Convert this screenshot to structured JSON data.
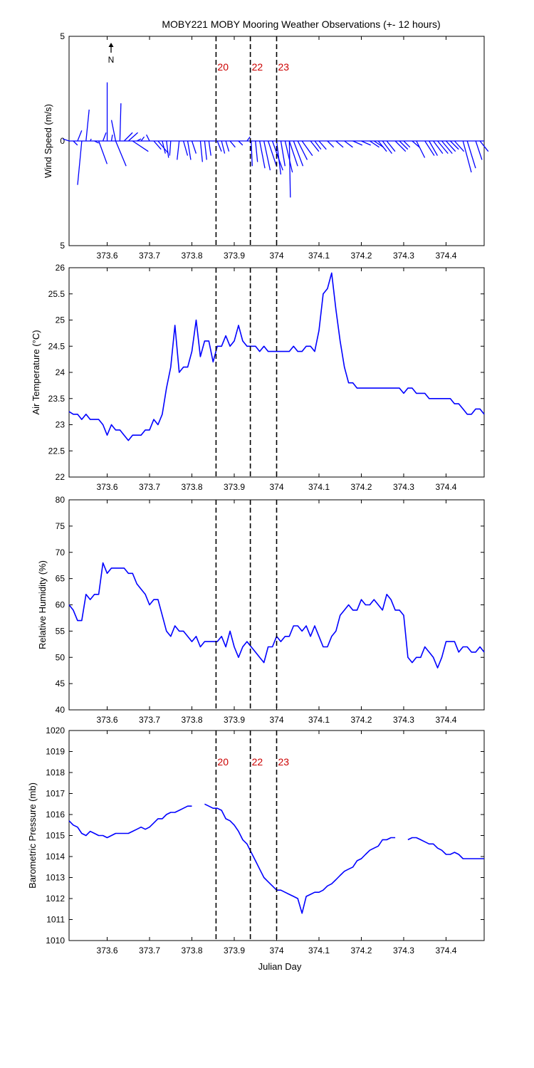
{
  "title": "MOBY221 MOBY Mooring Weather Observations (+- 12 hours)",
  "xlabel": "Julian Day",
  "north_label": "N",
  "line_color": "#0000ff",
  "marker_color": "#cc0000",
  "chart_data": [
    {
      "type": "line",
      "subtype": "wind-vector (stick) plot",
      "ylabel": "Wind Speed (m/s)",
      "ylim": [
        -5,
        5
      ],
      "yticks": [
        5,
        0,
        5
      ],
      "xlim": [
        373.51,
        374.49
      ],
      "xticks": [
        "373.6",
        "373.7",
        "373.8",
        "373.9",
        "374",
        "374.1",
        "374.2",
        "374.3",
        "374.4"
      ],
      "xtick_values": [
        373.6,
        373.7,
        373.8,
        373.9,
        374.0,
        374.1,
        374.2,
        374.3,
        374.4
      ],
      "event_lines": [
        {
          "x": 373.857,
          "label": "20"
        },
        {
          "x": 373.938,
          "label": "22"
        },
        {
          "x": 374.0,
          "label": "23"
        }
      ],
      "vectors": [
        [
          373.51,
          -0.6,
          0.1
        ],
        [
          373.52,
          0.4,
          -0.2
        ],
        [
          373.53,
          0.4,
          0.5
        ],
        [
          373.54,
          -0.4,
          -2.1
        ],
        [
          373.55,
          0.3,
          1.5
        ],
        [
          373.56,
          0.1,
          0.1
        ],
        [
          373.57,
          0.4,
          -0.1
        ],
        [
          373.58,
          0.8,
          -1.1
        ],
        [
          373.59,
          0.3,
          0.4
        ],
        [
          373.6,
          0.0,
          2.8
        ],
        [
          373.61,
          0.1,
          0.3
        ],
        [
          373.62,
          -0.4,
          1.0
        ],
        [
          373.62,
          1.0,
          -1.2
        ],
        [
          373.63,
          0.1,
          1.8
        ],
        [
          373.64,
          0.8,
          0.4
        ],
        [
          373.65,
          0.9,
          0.4
        ],
        [
          373.66,
          1.5,
          -0.5
        ],
        [
          373.67,
          0.4,
          0.1
        ],
        [
          373.68,
          0.3,
          0.2
        ],
        [
          373.7,
          -0.3,
          0.3
        ],
        [
          373.71,
          0.7,
          -0.4
        ],
        [
          373.72,
          1.0,
          -0.6
        ],
        [
          373.73,
          0.3,
          -0.6
        ],
        [
          373.74,
          0.2,
          -0.8
        ],
        [
          373.75,
          -0.1,
          -0.7
        ],
        [
          373.77,
          -0.2,
          -0.9
        ],
        [
          373.78,
          0.4,
          -0.7
        ],
        [
          373.79,
          0.3,
          -0.9
        ],
        [
          373.8,
          0.4,
          -0.6
        ],
        [
          373.82,
          0.2,
          -1.0
        ],
        [
          373.83,
          0.2,
          -0.9
        ],
        [
          373.84,
          0.2,
          -0.7
        ],
        [
          373.86,
          0.4,
          -0.5
        ],
        [
          373.87,
          0.3,
          -0.6
        ],
        [
          373.88,
          0.3,
          -0.5
        ],
        [
          373.89,
          0.5,
          -0.3
        ],
        [
          373.91,
          0.4,
          -0.2
        ],
        [
          373.93,
          0.3,
          0.2
        ],
        [
          373.94,
          0.1,
          -1.2
        ],
        [
          373.95,
          0.2,
          -1.0
        ],
        [
          373.96,
          0.5,
          -1.3
        ],
        [
          373.97,
          0.6,
          -1.4
        ],
        [
          373.98,
          0.8,
          -1.2
        ],
        [
          373.99,
          1.0,
          -1.4
        ],
        [
          374.0,
          0.4,
          -1.6
        ],
        [
          374.01,
          0.4,
          -1.2
        ],
        [
          374.02,
          0.7,
          -1.5
        ],
        [
          374.03,
          0.8,
          -1.2
        ],
        [
          374.03,
          0.1,
          -2.7
        ],
        [
          374.04,
          0.9,
          -1.2
        ],
        [
          374.05,
          0.9,
          -0.9
        ],
        [
          374.06,
          1.0,
          -0.7
        ],
        [
          374.08,
          0.8,
          -0.5
        ],
        [
          374.09,
          0.6,
          -0.4
        ],
        [
          374.1,
          0.7,
          -0.4
        ],
        [
          374.12,
          0.6,
          -0.3
        ],
        [
          374.14,
          0.7,
          -0.3
        ],
        [
          374.16,
          0.8,
          -0.3
        ],
        [
          374.18,
          0.9,
          -0.2
        ],
        [
          374.2,
          0.9,
          -0.2
        ],
        [
          374.22,
          0.9,
          -0.3
        ],
        [
          374.23,
          0.9,
          -0.3
        ],
        [
          374.24,
          0.8,
          -0.5
        ],
        [
          374.25,
          0.9,
          -0.6
        ],
        [
          374.26,
          0.8,
          -0.5
        ],
        [
          374.28,
          1.0,
          -0.5
        ],
        [
          374.29,
          0.8,
          -0.4
        ],
        [
          374.3,
          0.6,
          -0.3
        ],
        [
          374.32,
          0.7,
          -0.3
        ],
        [
          374.33,
          0.8,
          -0.8
        ],
        [
          374.35,
          0.9,
          -0.7
        ],
        [
          374.36,
          0.8,
          -0.7
        ],
        [
          374.37,
          0.9,
          -0.6
        ],
        [
          374.38,
          1.0,
          -0.6
        ],
        [
          374.39,
          1.0,
          -0.6
        ],
        [
          374.4,
          0.9,
          -0.5
        ],
        [
          374.41,
          0.8,
          -0.4
        ],
        [
          374.42,
          0.9,
          -0.5
        ],
        [
          374.44,
          0.8,
          -1.5
        ],
        [
          374.45,
          0.8,
          -1.3
        ],
        [
          374.47,
          0.6,
          -0.9
        ],
        [
          374.48,
          0.8,
          -0.5
        ]
      ]
    },
    {
      "type": "line",
      "ylabel": "Air Temperature (°C)",
      "ylim": [
        22,
        26
      ],
      "yticks": [
        22,
        22.5,
        23,
        23.5,
        24,
        24.5,
        25,
        25.5,
        26
      ],
      "ytick_labels": [
        "22",
        "22.5",
        "23",
        "23.5",
        "24",
        "24.5",
        "25",
        "25.5",
        "26"
      ],
      "xlim": [
        373.51,
        374.49
      ],
      "xticks": [
        "373.6",
        "373.7",
        "373.8",
        "373.9",
        "374",
        "374.1",
        "374.2",
        "374.3",
        "374.4"
      ],
      "xtick_values": [
        373.6,
        373.7,
        373.8,
        373.9,
        374.0,
        374.1,
        374.2,
        374.3,
        374.4
      ],
      "event_lines": [
        {
          "x": 373.857
        },
        {
          "x": 373.938
        },
        {
          "x": 374.0
        }
      ],
      "x": [
        373.51,
        373.52,
        373.53,
        373.54,
        373.55,
        373.56,
        373.57,
        373.58,
        373.59,
        373.6,
        373.61,
        373.62,
        373.63,
        373.64,
        373.65,
        373.66,
        373.67,
        373.68,
        373.69,
        373.7,
        373.71,
        373.72,
        373.73,
        373.74,
        373.75,
        373.76,
        373.77,
        373.78,
        373.79,
        373.8,
        373.81,
        373.82,
        373.83,
        373.84,
        373.85,
        373.86,
        373.87,
        373.88,
        373.89,
        373.9,
        373.91,
        373.92,
        373.93,
        373.94,
        373.95,
        373.96,
        373.97,
        373.98,
        373.99,
        374.0,
        374.01,
        374.02,
        374.03,
        374.04,
        374.05,
        374.06,
        374.07,
        374.08,
        374.09,
        374.1,
        374.11,
        374.12,
        374.13,
        374.14,
        374.15,
        374.16,
        374.17,
        374.18,
        374.19,
        374.2,
        374.21,
        374.22,
        374.23,
        374.24,
        374.25,
        374.26,
        374.27,
        374.28,
        374.29,
        374.3,
        374.31,
        374.32,
        374.33,
        374.34,
        374.35,
        374.36,
        374.37,
        374.38,
        374.39,
        374.4,
        374.41,
        374.42,
        374.43,
        374.44,
        374.45,
        374.46,
        374.47,
        374.48,
        374.49
      ],
      "y": [
        23.25,
        23.2,
        23.2,
        23.1,
        23.2,
        23.1,
        23.1,
        23.1,
        23.0,
        22.8,
        23.0,
        22.9,
        22.9,
        22.8,
        22.7,
        22.8,
        22.8,
        22.8,
        22.9,
        22.9,
        23.1,
        23.0,
        23.2,
        23.7,
        24.1,
        24.9,
        24.0,
        24.1,
        24.1,
        24.4,
        25.0,
        24.3,
        24.6,
        24.6,
        24.2,
        24.5,
        24.5,
        24.7,
        24.5,
        24.6,
        24.9,
        24.6,
        24.5,
        24.5,
        24.5,
        24.4,
        24.5,
        24.4,
        24.4,
        24.4,
        24.4,
        24.4,
        24.4,
        24.5,
        24.4,
        24.4,
        24.5,
        24.5,
        24.4,
        24.8,
        25.5,
        25.6,
        25.9,
        25.2,
        24.6,
        24.1,
        23.8,
        23.8,
        23.7,
        23.7,
        23.7,
        23.7,
        23.7,
        23.7,
        23.7,
        23.7,
        23.7,
        23.7,
        23.7,
        23.6,
        23.7,
        23.7,
        23.6,
        23.6,
        23.6,
        23.5,
        23.5,
        23.5,
        23.5,
        23.5,
        23.5,
        23.4,
        23.4,
        23.3,
        23.2,
        23.2,
        23.3,
        23.3,
        23.2
      ]
    },
    {
      "type": "line",
      "ylabel": "Relative Humidity (%)",
      "ylim": [
        40,
        80
      ],
      "yticks": [
        40,
        45,
        50,
        55,
        60,
        65,
        70,
        75,
        80
      ],
      "ytick_labels": [
        "40",
        "45",
        "50",
        "55",
        "60",
        "65",
        "70",
        "75",
        "80"
      ],
      "xlim": [
        373.51,
        374.49
      ],
      "xticks": [
        "373.6",
        "373.7",
        "373.8",
        "373.9",
        "374",
        "374.1",
        "374.2",
        "374.3",
        "374.4"
      ],
      "xtick_values": [
        373.6,
        373.7,
        373.8,
        373.9,
        374.0,
        374.1,
        374.2,
        374.3,
        374.4
      ],
      "event_lines": [
        {
          "x": 373.857
        },
        {
          "x": 373.938
        },
        {
          "x": 374.0
        }
      ],
      "x": [
        373.51,
        373.52,
        373.53,
        373.54,
        373.55,
        373.56,
        373.57,
        373.58,
        373.59,
        373.6,
        373.61,
        373.62,
        373.63,
        373.64,
        373.65,
        373.66,
        373.67,
        373.68,
        373.69,
        373.7,
        373.71,
        373.72,
        373.73,
        373.74,
        373.75,
        373.76,
        373.77,
        373.78,
        373.79,
        373.8,
        373.81,
        373.82,
        373.83,
        373.84,
        373.85,
        373.86,
        373.87,
        373.88,
        373.89,
        373.9,
        373.91,
        373.92,
        373.93,
        373.94,
        373.95,
        373.96,
        373.97,
        373.98,
        373.99,
        374.0,
        374.01,
        374.02,
        374.03,
        374.04,
        374.05,
        374.06,
        374.07,
        374.08,
        374.09,
        374.1,
        374.11,
        374.12,
        374.13,
        374.14,
        374.15,
        374.16,
        374.17,
        374.18,
        374.19,
        374.2,
        374.21,
        374.22,
        374.23,
        374.24,
        374.25,
        374.26,
        374.27,
        374.28,
        374.29,
        374.3,
        374.31,
        374.32,
        374.33,
        374.34,
        374.35,
        374.36,
        374.37,
        374.38,
        374.39,
        374.4,
        374.41,
        374.42,
        374.43,
        374.44,
        374.45,
        374.46,
        374.47,
        374.48,
        374.49
      ],
      "y": [
        60,
        59,
        57,
        57,
        62,
        61,
        62,
        62,
        68,
        66,
        67,
        67,
        67,
        67,
        66,
        66,
        64,
        63,
        62,
        60,
        61,
        61,
        58,
        55,
        54,
        56,
        55,
        55,
        54,
        53,
        54,
        52,
        53,
        53,
        53,
        53,
        54,
        52,
        55,
        52,
        50,
        52,
        53,
        52,
        51,
        50,
        49,
        52,
        52,
        54,
        53,
        54,
        54,
        56,
        56,
        55,
        56,
        54,
        56,
        54,
        52,
        52,
        54,
        55,
        58,
        59,
        60,
        59,
        59,
        61,
        60,
        60,
        61,
        60,
        59,
        62,
        61,
        59,
        59,
        58,
        50,
        49,
        50,
        50,
        52,
        51,
        50,
        48,
        50,
        53,
        53,
        53,
        51,
        52,
        52,
        51,
        51,
        52,
        51
      ]
    },
    {
      "type": "line",
      "ylabel": "Barometric Pressure (mb)",
      "ylim": [
        1010,
        1020
      ],
      "yticks": [
        1010,
        1011,
        1012,
        1013,
        1014,
        1015,
        1016,
        1017,
        1018,
        1019,
        1020
      ],
      "ytick_labels": [
        "1010",
        "1011",
        "1012",
        "1013",
        "1014",
        "1015",
        "1016",
        "1017",
        "1018",
        "1019",
        "1020"
      ],
      "xlim": [
        373.51,
        374.49
      ],
      "xticks": [
        "373.6",
        "373.7",
        "373.8",
        "373.9",
        "374",
        "374.1",
        "374.2",
        "374.3",
        "374.4"
      ],
      "xtick_values": [
        373.6,
        373.7,
        373.8,
        373.9,
        374.0,
        374.1,
        374.2,
        374.3,
        374.4
      ],
      "event_lines": [
        {
          "x": 373.857,
          "label": "20"
        },
        {
          "x": 373.938,
          "label": "22"
        },
        {
          "x": 374.0,
          "label": "23"
        }
      ],
      "x": [
        373.51,
        373.52,
        373.53,
        373.54,
        373.55,
        373.56,
        373.57,
        373.58,
        373.59,
        373.6,
        373.61,
        373.62,
        373.63,
        373.64,
        373.65,
        373.66,
        373.67,
        373.68,
        373.69,
        373.7,
        373.71,
        373.72,
        373.73,
        373.74,
        373.75,
        373.76,
        373.77,
        373.78,
        373.79,
        373.8,
        373.81,
        373.82,
        373.83,
        373.84,
        373.85,
        373.86,
        373.87,
        373.88,
        373.89,
        373.9,
        373.91,
        373.92,
        373.93,
        373.94,
        373.95,
        373.96,
        373.97,
        373.98,
        373.99,
        374.0,
        374.01,
        374.02,
        374.03,
        374.04,
        374.05,
        374.06,
        374.07,
        374.08,
        374.09,
        374.1,
        374.11,
        374.12,
        374.13,
        374.14,
        374.15,
        374.16,
        374.17,
        374.18,
        374.19,
        374.2,
        374.21,
        374.22,
        374.23,
        374.24,
        374.25,
        374.26,
        374.27,
        374.28,
        374.29,
        374.3,
        374.31,
        374.32,
        374.33,
        374.34,
        374.35,
        374.36,
        374.37,
        374.38,
        374.39,
        374.4,
        374.41,
        374.42,
        374.43,
        374.44,
        374.45,
        374.46,
        374.47,
        374.48,
        374.49
      ],
      "y": [
        1015.7,
        1015.5,
        1015.4,
        1015.1,
        1015.0,
        1015.2,
        1015.1,
        1015.0,
        1015.0,
        1014.9,
        1015.0,
        1015.1,
        1015.1,
        1015.1,
        1015.1,
        1015.2,
        1015.3,
        1015.4,
        1015.3,
        1015.4,
        1015.6,
        1015.8,
        1015.8,
        1016.0,
        1016.1,
        1016.1,
        1016.2,
        1016.3,
        1016.4,
        1016.4,
        null,
        null,
        1016.5,
        1016.4,
        1016.3,
        1016.3,
        1016.2,
        1015.8,
        1015.7,
        1015.5,
        1015.2,
        1014.8,
        1014.6,
        1014.2,
        1013.8,
        1013.4,
        1013.0,
        1012.8,
        1012.6,
        1012.4,
        1012.4,
        1012.3,
        1012.2,
        1012.1,
        1012.0,
        1011.3,
        1012.1,
        1012.2,
        1012.3,
        1012.3,
        1012.4,
        1012.6,
        1012.7,
        1012.9,
        1013.1,
        1013.3,
        1013.4,
        1013.5,
        1013.8,
        1013.9,
        1014.1,
        1014.3,
        1014.4,
        1014.5,
        1014.8,
        1014.8,
        1014.9,
        1014.9,
        null,
        null,
        1014.8,
        1014.9,
        1014.9,
        1014.8,
        1014.7,
        1014.6,
        1014.6,
        1014.4,
        1014.3,
        1014.1,
        1014.1,
        1014.2,
        1014.1,
        1013.9,
        1013.9,
        1013.9,
        1013.9,
        1013.9,
        1013.9
      ]
    }
  ]
}
